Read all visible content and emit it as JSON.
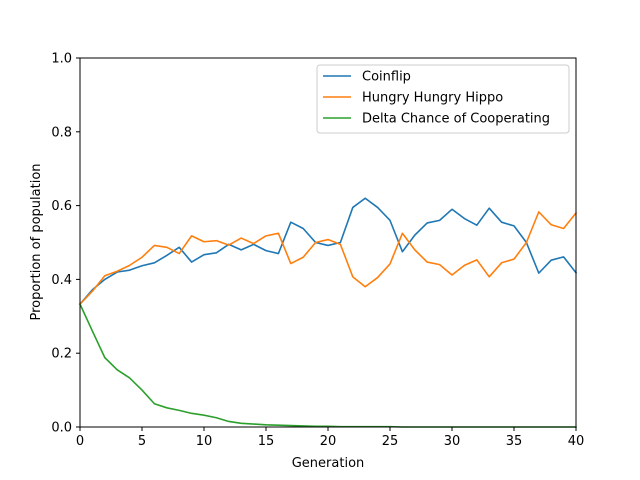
{
  "chart_data": {
    "type": "line",
    "title": "",
    "xlabel": "Generation",
    "ylabel": "Proportion of population",
    "xlim": [
      0,
      40
    ],
    "ylim": [
      0,
      1.0
    ],
    "xticks": [
      0,
      5,
      10,
      15,
      20,
      25,
      30,
      35,
      40
    ],
    "xtick_labels": [
      "0",
      "5",
      "10",
      "15",
      "20",
      "25",
      "30",
      "35",
      "40"
    ],
    "yticks": [
      0.0,
      0.2,
      0.4,
      0.6,
      0.8,
      1.0
    ],
    "ytick_labels": [
      "0.0",
      "0.2",
      "0.4",
      "0.6",
      "0.8",
      "1.0"
    ],
    "grid": false,
    "legend_position": "upper right",
    "x": [
      0,
      1,
      2,
      3,
      4,
      5,
      6,
      7,
      8,
      9,
      10,
      11,
      12,
      13,
      14,
      15,
      16,
      17,
      18,
      19,
      20,
      21,
      22,
      23,
      24,
      25,
      26,
      27,
      28,
      29,
      30,
      31,
      32,
      33,
      34,
      35,
      36,
      37,
      38,
      39,
      40
    ],
    "series": [
      {
        "name": "Coinflip",
        "color": "#1f77b4",
        "values": [
          0.333,
          0.372,
          0.4,
          0.42,
          0.425,
          0.437,
          0.445,
          0.465,
          0.487,
          0.447,
          0.467,
          0.472,
          0.495,
          0.48,
          0.495,
          0.478,
          0.47,
          0.555,
          0.538,
          0.5,
          0.492,
          0.5,
          0.595,
          0.62,
          0.595,
          0.56,
          0.475,
          0.52,
          0.553,
          0.56,
          0.59,
          0.565,
          0.547,
          0.593,
          0.555,
          0.545,
          0.5,
          0.417,
          0.452,
          0.461,
          0.418
        ]
      },
      {
        "name": "Hungry Hungry Hippo",
        "color": "#ff7f0e",
        "values": [
          0.333,
          0.368,
          0.41,
          0.422,
          0.438,
          0.46,
          0.492,
          0.487,
          0.47,
          0.518,
          0.502,
          0.505,
          0.493,
          0.512,
          0.497,
          0.518,
          0.525,
          0.443,
          0.46,
          0.5,
          0.508,
          0.495,
          0.407,
          0.38,
          0.405,
          0.442,
          0.525,
          0.48,
          0.447,
          0.44,
          0.412,
          0.438,
          0.453,
          0.407,
          0.445,
          0.455,
          0.5,
          0.583,
          0.548,
          0.538,
          0.58
        ]
      },
      {
        "name": "Delta Chance of Cooperating",
        "color": "#2ca02c",
        "values": [
          0.333,
          0.26,
          0.188,
          0.155,
          0.133,
          0.1,
          0.063,
          0.052,
          0.045,
          0.037,
          0.032,
          0.025,
          0.015,
          0.01,
          0.008,
          0.006,
          0.005,
          0.004,
          0.003,
          0.002,
          0.002,
          0.001,
          0.001,
          0.001,
          0.001,
          0.001,
          0.0,
          0.0,
          0.0,
          0.0,
          0.0,
          0.0,
          0.0,
          0.0,
          0.0,
          0.0,
          0.0,
          0.0,
          0.0,
          0.0,
          0.0
        ]
      }
    ]
  }
}
